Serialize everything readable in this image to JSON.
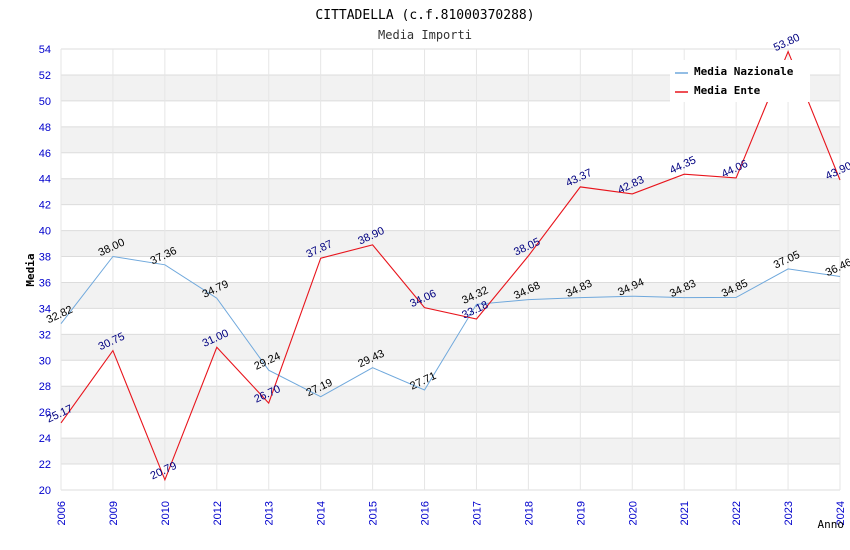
{
  "chart_data": {
    "type": "line",
    "title": "CITTADELLA (c.f.81000370288)",
    "subtitle": "Media Importi",
    "xlabel": "Anno",
    "ylabel": "Media",
    "ylim": [
      20,
      54
    ],
    "y_ticks": [
      "20",
      "22",
      "24",
      "26",
      "28",
      "30",
      "32",
      "34",
      "36",
      "38",
      "40",
      "42",
      "44",
      "46",
      "48",
      "50",
      "52",
      "54"
    ],
    "categories": [
      "2006",
      "2009",
      "2010",
      "2012",
      "2013",
      "2014",
      "2015",
      "2016",
      "2017",
      "2018",
      "2019",
      "2020",
      "2021",
      "2022",
      "2023",
      "2024"
    ],
    "grid": "horizontal bands",
    "legend_position": "top-right",
    "series": [
      {
        "name": "Media Nazionale",
        "color": "#6fa8dc",
        "values": [
          32.82,
          38.0,
          37.36,
          34.79,
          29.24,
          27.19,
          29.43,
          27.71,
          34.32,
          34.68,
          34.83,
          34.94,
          34.83,
          34.85,
          37.05,
          36.46
        ],
        "labels": [
          "32.82",
          "38.00",
          "37.36",
          "34.79",
          "29.24",
          "27.19",
          "29.43",
          "27.71",
          "34.32",
          "34.68",
          "34.83",
          "34.94",
          "34.83",
          "34.85",
          "37.05",
          "36.46"
        ]
      },
      {
        "name": "Media Ente",
        "color": "#e8141c",
        "values": [
          25.17,
          30.75,
          20.79,
          31.0,
          26.7,
          37.87,
          38.9,
          34.06,
          33.18,
          38.05,
          43.37,
          42.83,
          44.35,
          44.06,
          53.8,
          43.9
        ],
        "labels": [
          "25.17",
          "30.75",
          "20.79",
          "31.00",
          "26.70",
          "37.87",
          "38.90",
          "34.06",
          "33.18",
          "38.05",
          "43.37",
          "42.83",
          "44.35",
          "44.06",
          "53.80",
          "43.90"
        ]
      }
    ]
  }
}
